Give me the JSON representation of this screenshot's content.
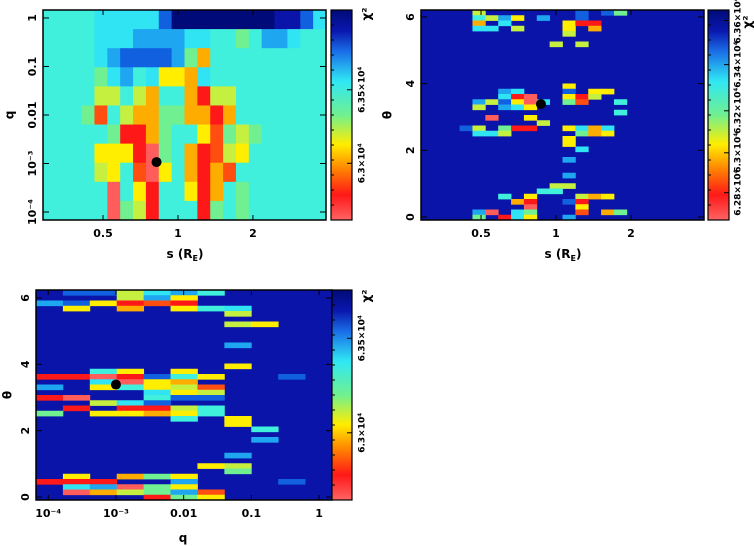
{
  "colormap_levels": [
    "#ff5c5c",
    "#ff1818",
    "#ff4e10",
    "#ffac00",
    "#ffee00",
    "#c6f040",
    "#70f090",
    "#40f0dc",
    "#30e4f4",
    "#1ea6f0",
    "#1060e0",
    "#0a14a8",
    "#000a78"
  ],
  "chart_data": [
    {
      "type": "heatmap",
      "title": "",
      "xlabel_parts": [
        "s (R",
        "E",
        ")"
      ],
      "ylabel": "q",
      "xscale": "log",
      "yscale": "log",
      "xlim": [
        0.287,
        3.93
      ],
      "ylim": [
        6.84e-05,
        1.46
      ],
      "xticks": [
        {
          "v": 0.5,
          "label": "0.5"
        },
        {
          "v": 1,
          "label": "1"
        },
        {
          "v": 2,
          "label": "2"
        }
      ],
      "yticks": [
        {
          "v": 1,
          "label": "1"
        },
        {
          "v": 0.1,
          "label": "0.1"
        },
        {
          "v": 0.01,
          "label": "0.01"
        },
        {
          "v": 0.001,
          "label": "10⁻³"
        },
        {
          "v": 0.0001,
          "label": "10⁻⁴"
        }
      ],
      "colorbar": {
        "title": "χ²",
        "ticks": [
          {
            "frac": 0.62,
            "label": "6.35×10⁴"
          },
          {
            "frac": 0.27,
            "label": "6.3×10⁴"
          }
        ]
      },
      "nx": 22,
      "ny": 11,
      "grid_levels": [
        "777788888ACCCCCCCCBBA8",
        "7777888999988776799877",
        "777789AAAA963777777777",
        "7777689784438777777777",
        "7777557537731557777777",
        "7776275336633137777777",
        "7777761136774265677777",
        "7777444106731254777777",
        "7777547204731327777777",
        "7777707417741376777777",
        "7777706517771676777777"
      ],
      "best_fit": {
        "x": 0.82,
        "y": 0.00107
      }
    },
    {
      "type": "heatmap",
      "title": "",
      "xlabel_parts": [
        "s (R",
        "E",
        ")"
      ],
      "ylabel": "θ",
      "xscale": "log",
      "yscale": "linear",
      "xlim": [
        0.287,
        3.93
      ],
      "ylim": [
        -0.09,
        6.21
      ],
      "xticks": [
        {
          "v": 0.5,
          "label": "0.5"
        },
        {
          "v": 1,
          "label": "1"
        },
        {
          "v": 2,
          "label": "2"
        }
      ],
      "yticks": [
        {
          "v": 0,
          "label": "0"
        },
        {
          "v": 2,
          "label": "2"
        },
        {
          "v": 4,
          "label": "4"
        },
        {
          "v": 6,
          "label": "6"
        }
      ],
      "colorbar": {
        "title": "χ²",
        "ticks": [
          {
            "frac": 0.13,
            "label": "6.28×10⁴"
          },
          {
            "frac": 0.32,
            "label": "6.3×10⁴"
          },
          {
            "frac": 0.52,
            "label": "6.32×10⁴"
          },
          {
            "frac": 0.74,
            "label": "6.34×10⁴"
          },
          {
            "frac": 0.95,
            "label": "6.36×10⁴"
          }
        ]
      },
      "nx": 22,
      "ny": 40,
      "background_level": 11,
      "cells": [
        [
          0,
          4,
          5
        ],
        [
          0,
          12,
          10
        ],
        [
          0,
          14,
          10
        ],
        [
          0,
          15,
          6
        ],
        [
          1,
          4,
          7
        ],
        [
          1,
          5,
          5
        ],
        [
          1,
          6,
          9
        ],
        [
          1,
          7,
          4
        ],
        [
          1,
          9,
          9
        ],
        [
          1,
          12,
          10
        ],
        [
          2,
          4,
          3
        ],
        [
          2,
          6,
          8
        ],
        [
          2,
          11,
          4
        ],
        [
          2,
          12,
          1
        ],
        [
          2,
          13,
          1
        ],
        [
          3,
          4,
          8
        ],
        [
          3,
          5,
          8
        ],
        [
          3,
          7,
          5
        ],
        [
          3,
          11,
          4
        ],
        [
          3,
          13,
          3
        ],
        [
          4,
          11,
          5
        ],
        [
          6,
          10,
          5
        ],
        [
          6,
          12,
          5
        ],
        [
          14,
          11,
          4
        ],
        [
          15,
          6,
          9
        ],
        [
          15,
          7,
          8
        ],
        [
          15,
          11,
          10
        ],
        [
          15,
          13,
          4
        ],
        [
          15,
          14,
          4
        ],
        [
          16,
          6,
          8
        ],
        [
          16,
          7,
          1
        ],
        [
          16,
          8,
          0
        ],
        [
          16,
          11,
          4
        ],
        [
          16,
          12,
          1
        ],
        [
          16,
          13,
          5
        ],
        [
          17,
          4,
          9
        ],
        [
          17,
          5,
          5
        ],
        [
          17,
          6,
          10
        ],
        [
          17,
          7,
          4
        ],
        [
          17,
          8,
          0
        ],
        [
          17,
          9,
          8
        ],
        [
          17,
          11,
          6
        ],
        [
          17,
          12,
          2
        ],
        [
          17,
          15,
          7
        ],
        [
          18,
          4,
          5
        ],
        [
          18,
          6,
          9
        ],
        [
          18,
          7,
          8
        ],
        [
          18,
          8,
          4
        ],
        [
          19,
          15,
          7
        ],
        [
          20,
          5,
          0
        ],
        [
          20,
          8,
          4
        ],
        [
          21,
          9,
          5
        ],
        [
          22,
          3,
          10
        ],
        [
          22,
          4,
          5
        ],
        [
          22,
          6,
          6
        ],
        [
          22,
          7,
          1
        ],
        [
          22,
          8,
          1
        ],
        [
          22,
          11,
          4
        ],
        [
          22,
          12,
          8
        ],
        [
          22,
          13,
          3
        ],
        [
          22,
          14,
          8
        ],
        [
          23,
          4,
          8
        ],
        [
          23,
          5,
          8
        ],
        [
          23,
          6,
          5
        ],
        [
          23,
          12,
          6
        ],
        [
          23,
          13,
          3
        ],
        [
          23,
          14,
          4
        ],
        [
          24,
          11,
          4
        ],
        [
          25,
          11,
          4
        ],
        [
          26,
          12,
          8
        ],
        [
          28,
          11,
          9
        ],
        [
          31,
          11,
          9
        ],
        [
          33,
          10,
          5
        ],
        [
          33,
          11,
          5
        ],
        [
          34,
          9,
          7
        ],
        [
          34,
          10,
          7
        ],
        [
          35,
          6,
          7
        ],
        [
          35,
          8,
          4
        ],
        [
          35,
          12,
          5
        ],
        [
          35,
          13,
          3
        ],
        [
          35,
          14,
          4
        ],
        [
          36,
          7,
          3
        ],
        [
          36,
          8,
          1
        ],
        [
          36,
          11,
          10
        ],
        [
          36,
          12,
          1
        ],
        [
          37,
          8,
          0
        ],
        [
          37,
          12,
          4
        ],
        [
          38,
          4,
          9
        ],
        [
          38,
          5,
          0
        ],
        [
          38,
          7,
          8
        ],
        [
          38,
          8,
          6
        ],
        [
          38,
          12,
          2
        ],
        [
          38,
          14,
          3
        ],
        [
          38,
          15,
          6
        ],
        [
          39,
          4,
          6
        ],
        [
          39,
          6,
          1
        ],
        [
          39,
          7,
          8
        ],
        [
          39,
          8,
          4
        ],
        [
          39,
          11,
          9
        ]
      ],
      "best_fit": {
        "x": 0.87,
        "y": 3.39
      }
    },
    {
      "type": "heatmap",
      "title": "",
      "xlabel": "q",
      "ylabel": "θ",
      "xscale": "log",
      "yscale": "linear",
      "xlim": [
        6.6e-05,
        1.55
      ],
      "ylim": [
        -0.09,
        6.24
      ],
      "xticks": [
        {
          "v": 0.0001,
          "label": "10⁻⁴"
        },
        {
          "v": 0.001,
          "label": "10⁻³"
        },
        {
          "v": 0.01,
          "label": "0.01"
        },
        {
          "v": 0.1,
          "label": "0.1"
        },
        {
          "v": 1,
          "label": "1"
        }
      ],
      "yticks": [
        {
          "v": 0,
          "label": "0"
        },
        {
          "v": 2,
          "label": "2"
        },
        {
          "v": 4,
          "label": "4"
        },
        {
          "v": 6,
          "label": "6"
        }
      ],
      "colorbar": {
        "title": "χ²",
        "ticks": [
          {
            "frac": 0.77,
            "label": "6.35×10⁴"
          },
          {
            "frac": 0.32,
            "label": "6.3×10⁴"
          }
        ]
      },
      "nx": 11,
      "ny": 40,
      "background_level": 11,
      "cells": [
        [
          0,
          1,
          10
        ],
        [
          0,
          2,
          10
        ],
        [
          0,
          3,
          5
        ],
        [
          0,
          4,
          8
        ],
        [
          0,
          5,
          9
        ],
        [
          0,
          6,
          7
        ],
        [
          1,
          3,
          5
        ],
        [
          1,
          4,
          9
        ],
        [
          1,
          5,
          4
        ],
        [
          2,
          0,
          9
        ],
        [
          2,
          1,
          10
        ],
        [
          2,
          2,
          4
        ],
        [
          2,
          3,
          1
        ],
        [
          2,
          4,
          2
        ],
        [
          2,
          5,
          1
        ],
        [
          3,
          1,
          4
        ],
        [
          3,
          3,
          3
        ],
        [
          3,
          5,
          4
        ],
        [
          3,
          6,
          7
        ],
        [
          3,
          7,
          8
        ],
        [
          4,
          7,
          5
        ],
        [
          6,
          7,
          5
        ],
        [
          6,
          8,
          4
        ],
        [
          10,
          7,
          9
        ],
        [
          14,
          7,
          4
        ],
        [
          15,
          2,
          7
        ],
        [
          15,
          3,
          4
        ],
        [
          15,
          5,
          4
        ],
        [
          16,
          0,
          1
        ],
        [
          16,
          1,
          1
        ],
        [
          16,
          2,
          0
        ],
        [
          16,
          3,
          1
        ],
        [
          16,
          4,
          10
        ],
        [
          16,
          5,
          7
        ],
        [
          16,
          6,
          4
        ],
        [
          16,
          9,
          10
        ],
        [
          17,
          2,
          8
        ],
        [
          17,
          3,
          0
        ],
        [
          17,
          4,
          4
        ],
        [
          17,
          5,
          3
        ],
        [
          18,
          0,
          9
        ],
        [
          18,
          2,
          4
        ],
        [
          18,
          3,
          7
        ],
        [
          18,
          4,
          4
        ],
        [
          18,
          5,
          5
        ],
        [
          18,
          6,
          2
        ],
        [
          19,
          4,
          8
        ],
        [
          19,
          5,
          4
        ],
        [
          19,
          6,
          5
        ],
        [
          20,
          0,
          1
        ],
        [
          20,
          1,
          0
        ],
        [
          20,
          4,
          7
        ],
        [
          20,
          5,
          10
        ],
        [
          20,
          6,
          10
        ],
        [
          21,
          2,
          5
        ],
        [
          21,
          3,
          8
        ],
        [
          21,
          4,
          10
        ],
        [
          22,
          1,
          1
        ],
        [
          22,
          3,
          1
        ],
        [
          22,
          4,
          1
        ],
        [
          22,
          5,
          5
        ],
        [
          22,
          6,
          7
        ],
        [
          23,
          0,
          6
        ],
        [
          23,
          2,
          4
        ],
        [
          23,
          3,
          4
        ],
        [
          23,
          4,
          3
        ],
        [
          23,
          5,
          4
        ],
        [
          23,
          6,
          7
        ],
        [
          24,
          5,
          7
        ],
        [
          24,
          7,
          4
        ],
        [
          25,
          7,
          4
        ],
        [
          26,
          8,
          7
        ],
        [
          28,
          8,
          9
        ],
        [
          31,
          7,
          9
        ],
        [
          33,
          6,
          4
        ],
        [
          33,
          7,
          5
        ],
        [
          34,
          7,
          6
        ],
        [
          35,
          1,
          4
        ],
        [
          35,
          3,
          3
        ],
        [
          35,
          4,
          6
        ],
        [
          35,
          5,
          4
        ],
        [
          36,
          0,
          1
        ],
        [
          36,
          1,
          1
        ],
        [
          36,
          2,
          1
        ],
        [
          36,
          5,
          9
        ],
        [
          36,
          9,
          10
        ],
        [
          37,
          1,
          8
        ],
        [
          37,
          2,
          9
        ],
        [
          37,
          3,
          0
        ],
        [
          37,
          4,
          6
        ],
        [
          37,
          5,
          4
        ],
        [
          38,
          1,
          0
        ],
        [
          38,
          2,
          3
        ],
        [
          38,
          3,
          5
        ],
        [
          38,
          4,
          6
        ],
        [
          38,
          5,
          9
        ],
        [
          38,
          6,
          2
        ],
        [
          39,
          4,
          1
        ],
        [
          39,
          5,
          6
        ],
        [
          39,
          6,
          4
        ]
      ],
      "best_fit": {
        "x": 0.001,
        "y": 3.39
      }
    }
  ]
}
